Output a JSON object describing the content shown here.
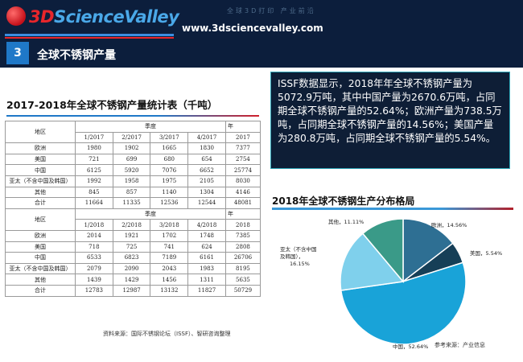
{
  "header": {
    "logo_text_3d": "3D",
    "logo_text_rest": "ScienceValley",
    "slogan": "全球3D打印 产业前沿",
    "url": "www.3dsciencevalley.com"
  },
  "section": {
    "number": "3",
    "title": "全球不锈钢产量"
  },
  "table": {
    "title": "2017-2018年全球不锈钢产量统计表（千吨）",
    "region_label": "地区",
    "quarter_label": "季度",
    "year_label": "年",
    "cols_2017": [
      "1/2017",
      "2/2017",
      "3/2017",
      "4/2017",
      "2017"
    ],
    "rows_2017": [
      {
        "region": "欧洲",
        "values": [
          "1980",
          "1902",
          "1665",
          "1830",
          "7377"
        ]
      },
      {
        "region": "美国",
        "values": [
          "721",
          "699",
          "680",
          "654",
          "2754"
        ]
      },
      {
        "region": "中国",
        "values": [
          "6125",
          "5920",
          "7076",
          "6652",
          "25774"
        ]
      },
      {
        "region": "亚太（不含中国及韩国）",
        "values": [
          "1992",
          "1958",
          "1975",
          "2105",
          "8030"
        ]
      },
      {
        "region": "其他",
        "values": [
          "845",
          "857",
          "1140",
          "1304",
          "4146"
        ]
      },
      {
        "region": "合计",
        "values": [
          "11664",
          "11335",
          "12536",
          "12544",
          "48081"
        ]
      }
    ],
    "cols_2018": [
      "1/2018",
      "2/2018",
      "3/2018",
      "4/2018",
      "2018"
    ],
    "rows_2018": [
      {
        "region": "欧洲",
        "values": [
          "2014",
          "1921",
          "1702",
          "1748",
          "7385"
        ]
      },
      {
        "region": "美国",
        "values": [
          "718",
          "725",
          "741",
          "624",
          "2808"
        ]
      },
      {
        "region": "中国",
        "values": [
          "6533",
          "6823",
          "7189",
          "6161",
          "26706"
        ]
      },
      {
        "region": "亚太（不含中国及韩国）",
        "values": [
          "2079",
          "2090",
          "2043",
          "1983",
          "8195"
        ]
      },
      {
        "region": "其他",
        "values": [
          "1439",
          "1429",
          "1456",
          "1311",
          "5635"
        ]
      },
      {
        "region": "合计",
        "values": [
          "12783",
          "12987",
          "13132",
          "11827",
          "50729"
        ]
      }
    ],
    "source": "资料来源：国际不锈钢论坛（ISSF）、智研咨询整理"
  },
  "info_text": "ISSF数据显示，2018年年全球不锈钢产量为5072.9万吨，其中中国产量为2670.6万吨，占同期全球不锈钢产量的52.64%；欧洲产量为738.5万吨，占同期全球不锈钢产量的14.56%；美国产量为280.8万吨，占同期全球不锈钢产量的5.54%。",
  "chart_data": {
    "type": "pie",
    "title": "2018年全球不锈钢生产分布格局",
    "slices": [
      {
        "label": "欧洲",
        "value": 14.56,
        "text": "欧洲，14.56%",
        "color": "#2e6f93"
      },
      {
        "label": "美国",
        "value": 5.54,
        "text": "美国，5.54%",
        "color": "#163f57"
      },
      {
        "label": "中国",
        "value": 52.64,
        "text": "中国，52.64%",
        "color": "#19a3d8"
      },
      {
        "label": "亚太（不含中国及韩国）",
        "value": 16.15,
        "text_lines": [
          "亚太（不含中国",
          "及韩国），",
          "16.15%"
        ],
        "color": "#7fd0ec"
      },
      {
        "label": "其他",
        "value": 11.11,
        "text": "其他，11.11%",
        "color": "#3a9a88"
      }
    ],
    "source": "参考来源：产业信息"
  }
}
